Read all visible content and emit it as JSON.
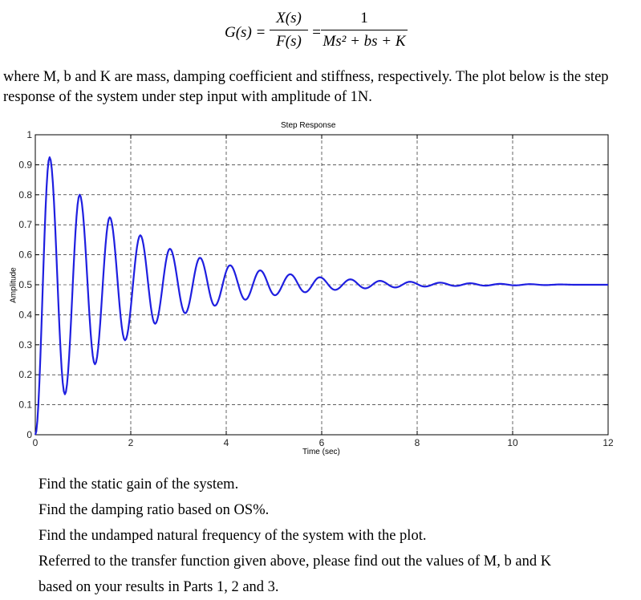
{
  "equation": {
    "lhs": "G(s) =",
    "frac1_num": "X(s)",
    "frac1_den": "F(s)",
    "eq2": "=",
    "frac2_num": "1",
    "frac2_den": "Ms² + bs + K"
  },
  "intro": {
    "text": "where M, b and K are mass, damping coefficient and stiffness, respectively. The plot below is the step response of the system under step input with amplitude of 1N."
  },
  "chart_data": {
    "type": "line",
    "title": "Step Response",
    "xlabel": "Time (sec)",
    "ylabel": "Amplitude",
    "xlim": [
      0,
      12
    ],
    "ylim": [
      0,
      1
    ],
    "xticks": [
      0,
      2,
      4,
      6,
      8,
      10,
      12
    ],
    "yticks": [
      0,
      0.1,
      0.2,
      0.3,
      0.4,
      0.5,
      0.6,
      0.7,
      0.8,
      0.9,
      1
    ],
    "xtick_labels": [
      "0",
      "2",
      "4",
      "6",
      "8",
      "10",
      "12"
    ],
    "ytick_labels": [
      "0",
      "0.1",
      "0.2",
      "0.3",
      "0.4",
      "0.5",
      "0.6",
      "0.7",
      "0.8",
      "0.9",
      "1"
    ],
    "grid": true,
    "series": [
      {
        "color": "#1f1fe0",
        "steady_state": 0.5,
        "peak_overshoot_value": 0.925,
        "peak_time": 0.3,
        "oscillation_period": 0.63,
        "x": [
          0,
          0.3,
          0.62,
          0.93,
          1.25,
          1.56,
          1.88,
          2.2,
          2.51,
          2.82,
          3.14,
          3.45,
          3.76,
          4.08,
          4.4,
          4.71,
          5.02,
          5.34,
          5.65,
          5.96,
          6.28,
          6.6,
          6.91,
          7.22,
          7.54,
          7.85,
          8.16,
          8.48,
          8.8,
          9.11,
          9.42,
          9.74,
          10.05,
          10.36,
          10.68,
          11.0,
          11.31,
          11.62,
          12.0
        ],
        "y": [
          0,
          0.925,
          0.135,
          0.8,
          0.235,
          0.725,
          0.315,
          0.665,
          0.37,
          0.62,
          0.405,
          0.59,
          0.43,
          0.565,
          0.45,
          0.548,
          0.465,
          0.535,
          0.475,
          0.525,
          0.483,
          0.518,
          0.488,
          0.513,
          0.491,
          0.51,
          0.494,
          0.507,
          0.496,
          0.505,
          0.497,
          0.503,
          0.498,
          0.502,
          0.499,
          0.501,
          0.5,
          0.5,
          0.5
        ]
      }
    ]
  },
  "questions": {
    "q1": "Find the static gain of the system.",
    "q2": "Find the damping ratio based on OS%.",
    "q3": "Find the undamped natural frequency of the system with the plot.",
    "q4_line1": "Referred to the transfer function given above, please find out the values of M, b and K",
    "q4_line2": "based on your results in Parts 1, 2 and 3."
  }
}
